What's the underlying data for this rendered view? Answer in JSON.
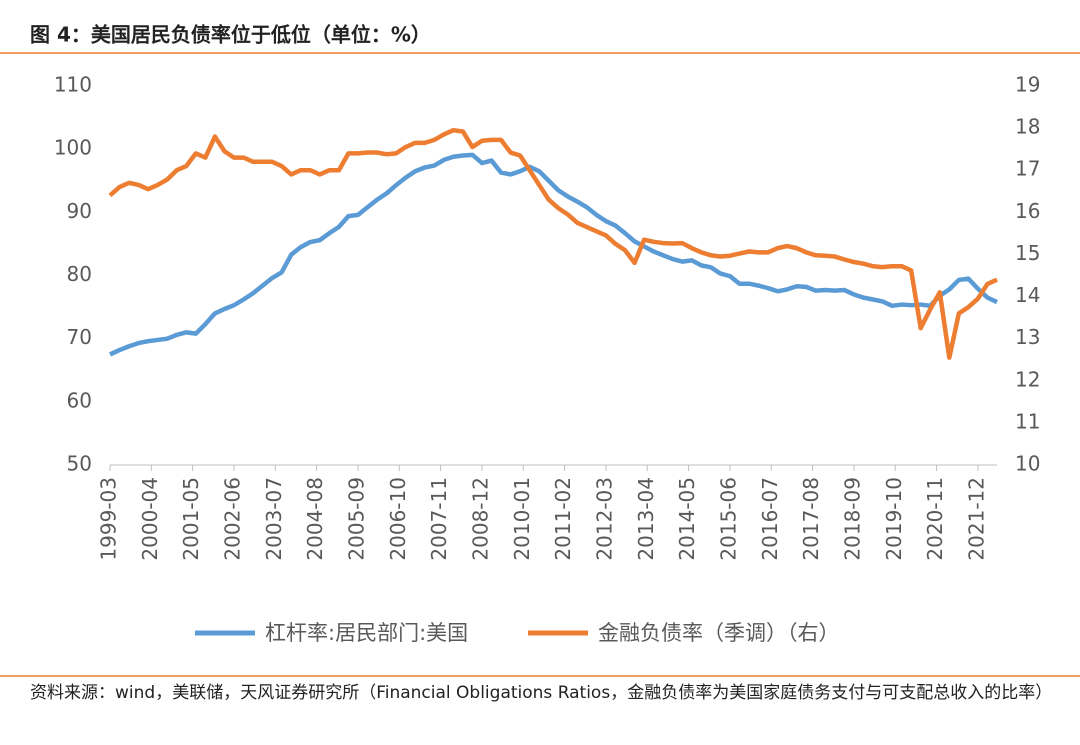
{
  "chart_data": {
    "type": "line",
    "title": "图 4：美国居民负债率位于低位（单位：%）",
    "source": "资料来源：wind，美联储，天风证券研究所（Financial Obligations Ratios，金融负债率为美国家庭债务支付与可支配总收入的比率）",
    "x": [
      "1999-03",
      "1999-06",
      "1999-09",
      "1999-12",
      "2000-03",
      "2000-06",
      "2000-09",
      "2000-12",
      "2001-03",
      "2001-06",
      "2001-09",
      "2001-12",
      "2002-03",
      "2002-06",
      "2002-09",
      "2002-12",
      "2003-03",
      "2003-06",
      "2003-09",
      "2003-12",
      "2004-03",
      "2004-06",
      "2004-09",
      "2004-12",
      "2005-03",
      "2005-06",
      "2005-09",
      "2005-12",
      "2006-03",
      "2006-06",
      "2006-09",
      "2006-12",
      "2007-03",
      "2007-06",
      "2007-09",
      "2007-12",
      "2008-03",
      "2008-06",
      "2008-09",
      "2008-12",
      "2009-03",
      "2009-06",
      "2009-09",
      "2009-12",
      "2010-03",
      "2010-06",
      "2010-09",
      "2010-12",
      "2011-03",
      "2011-06",
      "2011-09",
      "2011-12",
      "2012-03",
      "2012-06",
      "2012-09",
      "2012-12",
      "2013-03",
      "2013-06",
      "2013-09",
      "2013-12",
      "2014-03",
      "2014-06",
      "2014-09",
      "2014-12",
      "2015-03",
      "2015-06",
      "2015-09",
      "2015-12",
      "2016-03",
      "2016-06",
      "2016-09",
      "2016-12",
      "2017-03",
      "2017-06",
      "2017-09",
      "2017-12",
      "2018-03",
      "2018-06",
      "2018-09",
      "2018-12",
      "2019-03",
      "2019-06",
      "2019-09",
      "2019-12",
      "2020-03",
      "2020-06",
      "2020-09",
      "2020-12",
      "2021-03",
      "2021-06",
      "2021-09",
      "2021-12",
      "2022-03",
      "2022-06"
    ],
    "xlim": [
      "1999-03",
      "2022-06"
    ],
    "xticks": [
      "1999-03",
      "2000-04",
      "2001-05",
      "2002-06",
      "2003-07",
      "2004-08",
      "2005-09",
      "2006-10",
      "2007-11",
      "2008-12",
      "2010-01",
      "2011-02",
      "2012-03",
      "2013-04",
      "2014-05",
      "2015-06",
      "2016-07",
      "2017-08",
      "2018-09",
      "2019-10",
      "2020-11",
      "2021-12"
    ],
    "ylim": [
      50,
      110
    ],
    "yticks": [
      50,
      60,
      70,
      80,
      90,
      100,
      110
    ],
    "y2lim": [
      10,
      19
    ],
    "y2ticks": [
      10,
      11,
      12,
      13,
      14,
      15,
      16,
      17,
      18,
      19
    ],
    "series": [
      {
        "name": "杠杆率:居民部门:美国",
        "color": "#5b9bd5",
        "values": [
          67.5,
          68.2,
          68.8,
          69.3,
          69.6,
          69.8,
          70.0,
          70.6,
          71.0,
          70.8,
          72.3,
          74.0,
          74.7,
          75.3,
          76.2,
          77.2,
          78.4,
          79.6,
          80.5,
          83.3,
          84.5,
          85.3,
          85.6,
          86.7,
          87.7,
          89.4,
          89.6,
          90.8,
          92.0,
          93.0,
          94.3,
          95.5,
          96.5,
          97.1,
          97.4,
          98.3,
          98.8,
          99.0,
          99.1,
          97.8,
          98.2,
          96.3,
          96.0,
          96.5,
          97.2,
          96.5,
          95.0,
          93.5,
          92.5,
          91.7,
          90.8,
          89.6,
          88.6,
          87.9,
          86.7,
          85.4,
          84.6,
          83.8,
          83.2,
          82.6,
          82.2,
          82.4,
          81.6,
          81.3,
          80.3,
          79.9,
          78.7,
          78.7,
          78.4,
          78.0,
          77.5,
          77.8,
          78.3,
          78.2,
          77.6,
          77.7,
          77.6,
          77.7,
          77.0,
          76.5,
          76.2,
          75.9,
          75.2,
          75.4,
          75.3,
          75.4,
          75.2,
          76.8,
          77.8,
          79.3,
          79.5,
          77.9,
          76.5,
          75.8
        ]
      },
      {
        "name": "金融负债率（季调）（右）",
        "color": "#ed7d31",
        "axis": "y2",
        "values": [
          16.4,
          16.6,
          16.7,
          16.65,
          16.55,
          16.65,
          16.78,
          17.0,
          17.1,
          17.4,
          17.3,
          17.8,
          17.45,
          17.3,
          17.3,
          17.2,
          17.2,
          17.2,
          17.1,
          16.9,
          17.0,
          17.0,
          16.9,
          17.0,
          17.0,
          17.4,
          17.4,
          17.42,
          17.42,
          17.38,
          17.4,
          17.55,
          17.65,
          17.65,
          17.72,
          17.85,
          17.95,
          17.92,
          17.55,
          17.7,
          17.72,
          17.72,
          17.42,
          17.35,
          17.0,
          16.65,
          16.3,
          16.1,
          15.95,
          15.75,
          15.65,
          15.55,
          15.45,
          15.25,
          15.1,
          14.8,
          15.35,
          15.3,
          15.27,
          15.26,
          15.27,
          15.15,
          15.05,
          14.98,
          14.95,
          14.97,
          15.02,
          15.07,
          15.05,
          15.05,
          15.15,
          15.2,
          15.15,
          15.05,
          14.98,
          14.97,
          14.95,
          14.88,
          14.82,
          14.78,
          14.72,
          14.7,
          14.72,
          14.72,
          14.62,
          13.25,
          13.7,
          14.1,
          12.55,
          13.6,
          13.75,
          13.95,
          14.3,
          14.4
        ]
      }
    ]
  }
}
